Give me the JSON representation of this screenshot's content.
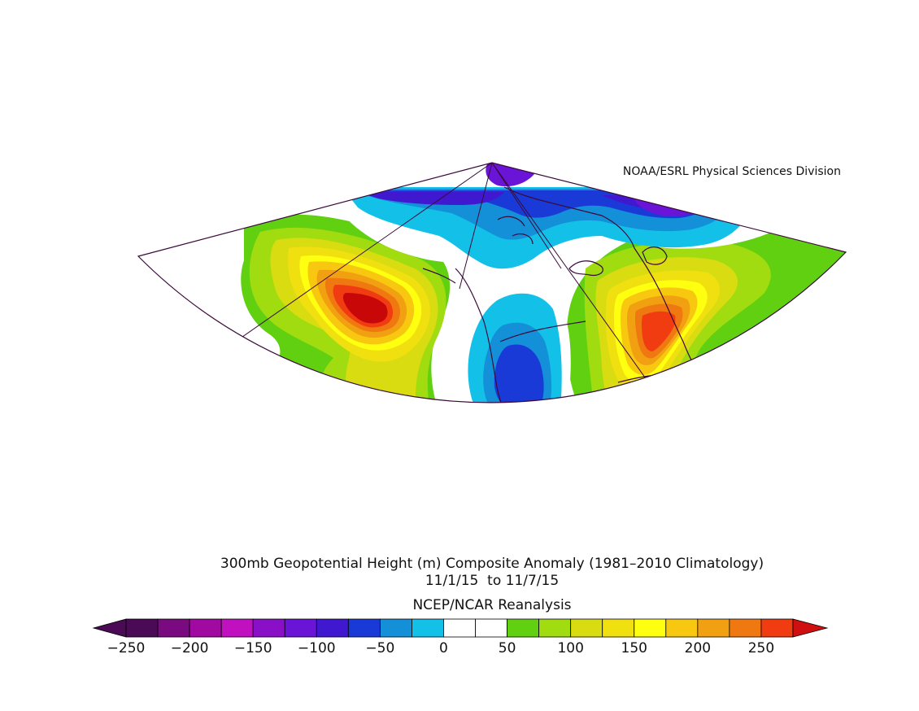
{
  "credit": "NOAA/ESRL Physical Sciences Division",
  "title_line1": "300mb Geopotential Height (m) Composite Anomaly (1981–2010 Climatology)",
  "title_line2": "11/1/15  to 11/7/15",
  "source": "NCEP/NCAR Reanalysis",
  "colorbar": {
    "ticks": [
      "−250",
      "−200",
      "−150",
      "−100",
      "−50",
      "0",
      "50",
      "100",
      "150",
      "200",
      "250"
    ],
    "tick_values": [
      -250,
      -200,
      -150,
      -100,
      -50,
      0,
      50,
      100,
      150,
      200,
      250
    ],
    "min": -250,
    "max": 250,
    "interval": 25,
    "colors": [
      "#4a0a55",
      "#7a0a80",
      "#a00aa0",
      "#c010c0",
      "#8a10c8",
      "#6a14d8",
      "#4018d0",
      "#1a3ad8",
      "#1490d8",
      "#12c0e8",
      "#ffffff",
      "#ffffff",
      "#60d010",
      "#a0dc10",
      "#d8dc10",
      "#f0e010",
      "#ffff10",
      "#f8c810",
      "#f0a010",
      "#f07810",
      "#f03c10"
    ],
    "under_color": "#4a0a55",
    "over_color": "#d01010"
  },
  "map": {
    "projection": "conic",
    "region": "North Pacific and North America",
    "anomaly_centers": [
      {
        "name": "north-pacific-ridge",
        "sign": "positive"
      },
      {
        "name": "eastern-north-america-ridge",
        "sign": "positive"
      },
      {
        "name": "western-us-trough",
        "sign": "negative"
      },
      {
        "name": "arctic-trough",
        "sign": "negative"
      }
    ]
  }
}
